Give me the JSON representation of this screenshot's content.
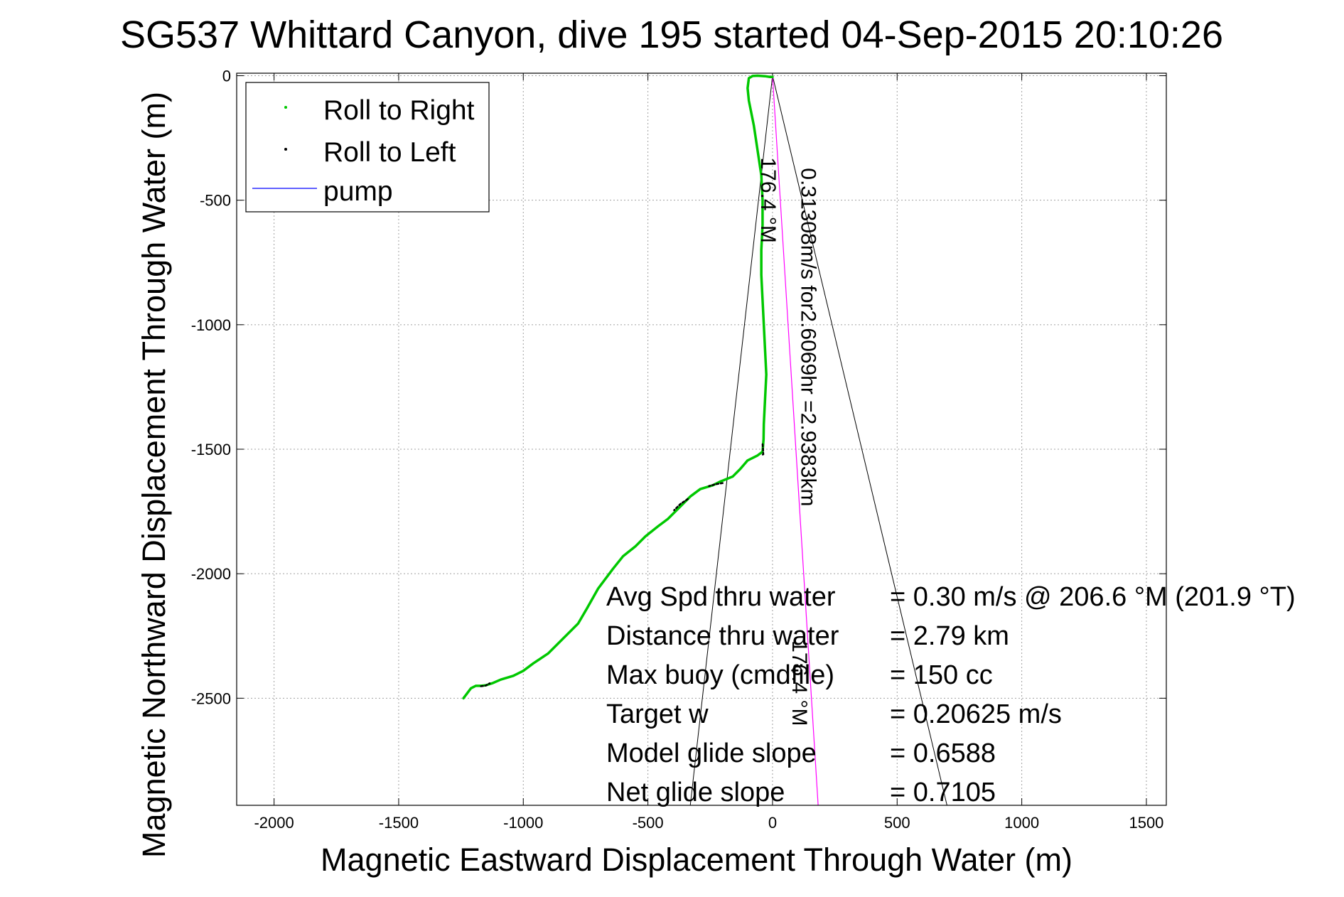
{
  "chart_data": {
    "type": "line",
    "title": "SG537 Whittard Canyon, dive 195 started 04-Sep-2015 20:10:26",
    "xlabel": "Magnetic Eastward Displacement Through Water (m)",
    "ylabel": "Magnetic Northward Displacement Through Water (m)",
    "xlim": [
      -2150,
      1580
    ],
    "ylim": [
      -2930,
      10
    ],
    "xticks": [
      -2000,
      -1500,
      -1000,
      -500,
      0,
      500,
      1000,
      1500
    ],
    "yticks": [
      0,
      -500,
      -1000,
      -1500,
      -2000,
      -2500
    ],
    "xtick_labels": [
      "-2000",
      "-1500",
      "-1000",
      "-500",
      "0",
      "500",
      "1000",
      "1500"
    ],
    "ytick_labels": [
      "0",
      "-500",
      "-1000",
      "-1500",
      "-2000",
      "-2500"
    ],
    "grid": true,
    "legend_position": "top-left",
    "legend": [
      "Roll to Right",
      "Roll to Left",
      "pump"
    ],
    "colors": {
      "roll_right": "#00c800",
      "roll_left": "#000000",
      "pump": "#0000ff",
      "bearing_line": "#ff00ff",
      "cone_lines": "#000000",
      "grid": "#a0a0a0"
    },
    "series": [
      {
        "name": "Roll to Right",
        "x": [
          0,
          -10,
          -30,
          -60,
          -80,
          -95,
          -100,
          -95,
          -85,
          -75,
          -60,
          -45,
          -40,
          -40,
          -45,
          -45,
          -40,
          -35,
          -30,
          -25,
          -30,
          -35,
          -36,
          -40,
          -60,
          -100,
          -130,
          -160,
          -210,
          -240,
          -290,
          -330,
          -380,
          -420,
          -460,
          -510,
          -550,
          -600,
          -640,
          -700,
          -745,
          -780,
          -820,
          -860,
          -900,
          -960,
          -1000,
          -1040,
          -1090,
          -1125,
          -1150,
          -1170,
          -1190,
          -1210,
          -1240
        ],
        "y": [
          -5,
          -5,
          -2,
          0,
          -1,
          -10,
          -50,
          -100,
          -150,
          -200,
          -300,
          -400,
          -500,
          -600,
          -700,
          -800,
          -900,
          -1000,
          -1100,
          -1200,
          -1300,
          -1400,
          -1460,
          -1510,
          -1525,
          -1545,
          -1580,
          -1610,
          -1630,
          -1645,
          -1660,
          -1690,
          -1740,
          -1780,
          -1810,
          -1850,
          -1890,
          -1930,
          -1980,
          -2060,
          -2140,
          -2200,
          -2240,
          -2280,
          -2320,
          -2360,
          -2390,
          -2410,
          -2425,
          -2440,
          -2448,
          -2450,
          -2450,
          -2460,
          -2500
        ]
      },
      {
        "name": "Roll to Left",
        "segments": [
          {
            "x": [
              -40,
              -38,
              -37,
              -45
            ],
            "y": [
              -1480,
              -1500,
              -1520,
              -1525
            ]
          },
          {
            "x": [
              -200,
              -230,
              -255
            ],
            "y": [
              -1636,
              -1641,
              -1648
            ]
          },
          {
            "x": [
              -340,
              -370,
              -395
            ],
            "y": [
              -1700,
              -1720,
              -1745
            ]
          },
          {
            "x": [
              -1170,
              -1150,
              -1135
            ],
            "y": [
              -2452,
              -2449,
              -2440
            ]
          }
        ]
      },
      {
        "name": "pump",
        "x": [],
        "y": []
      }
    ],
    "annotation_lines": {
      "bearing": {
        "x": [
          0,
          183
        ],
        "y": [
          0,
          -2930
        ]
      },
      "cone": [
        {
          "x": [
            0,
            -330
          ],
          "y": [
            0,
            -2930
          ]
        },
        {
          "x": [
            0,
            700
          ],
          "y": [
            0,
            -2930
          ]
        }
      ]
    },
    "rotated_annotations": [
      {
        "text": "176.4 °M",
        "x": -45,
        "y": -500
      },
      {
        "text": "0.31308m/s for2.6069hr =2.9383km",
        "x": 115,
        "y": -1050
      },
      {
        "text": "176.4 °M",
        "x": 80,
        "y": -2440
      }
    ],
    "stats": [
      {
        "label": "Avg Spd thru water",
        "value": "=  0.30 m/s @ 206.6 °M (201.9 °T)"
      },
      {
        "label": "Distance thru water",
        "value": "=  2.79 km"
      },
      {
        "label": "Max buoy (cmdfile)",
        "value": "= 150 cc"
      },
      {
        "label": "Target w",
        "value": "= 0.20625 m/s"
      },
      {
        "label": "Model glide slope",
        "value": "= 0.6588"
      },
      {
        "label": "Net glide slope",
        "value": "= 0.7105"
      }
    ]
  }
}
